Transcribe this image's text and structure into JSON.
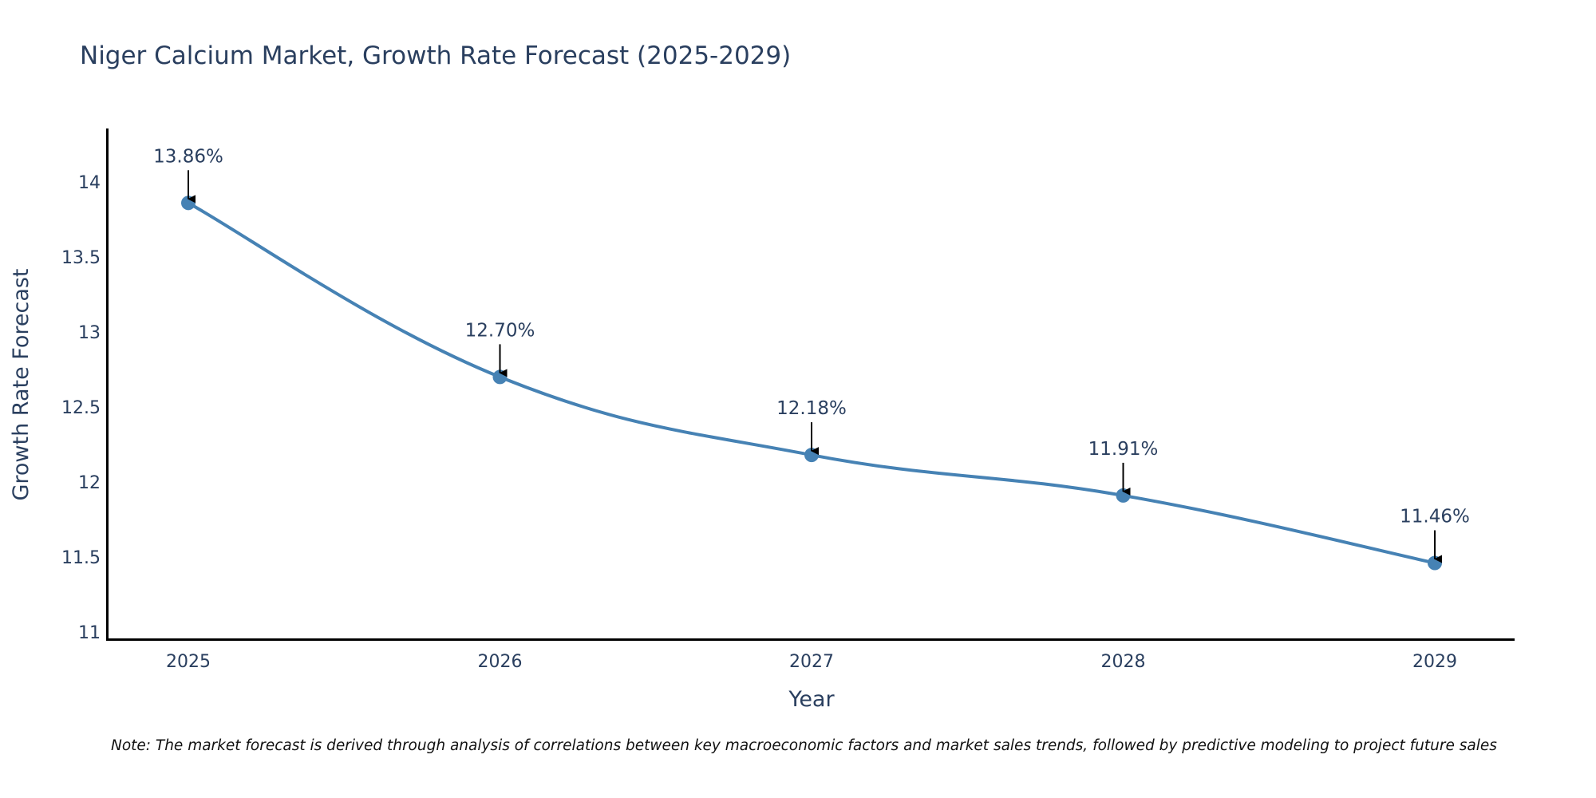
{
  "chart_data": {
    "type": "line",
    "title": "Niger Calcium Market, Growth Rate Forecast (2025-2029)",
    "xlabel": "Year",
    "ylabel": "Growth Rate Forecast",
    "categories": [
      "2025",
      "2026",
      "2027",
      "2028",
      "2029"
    ],
    "series": [
      {
        "name": "Growth Rate Forecast",
        "values": [
          13.86,
          12.7,
          12.18,
          11.91,
          11.46
        ],
        "labels": [
          "13.86%",
          "12.70%",
          "12.18%",
          "11.91%",
          "11.46%"
        ],
        "color": "#4682b4",
        "line_shape": "spline",
        "markers": true
      }
    ],
    "yticks": [
      11,
      11.5,
      12,
      12.5,
      13,
      13.5,
      14
    ],
    "ytick_labels": [
      "11",
      "11.5",
      "12",
      "12.5",
      "13",
      "13.5",
      "14"
    ],
    "ylim": [
      10.97,
      14.35
    ],
    "xlim": [
      -0.25,
      4.25
    ],
    "grid": false,
    "legend": "none",
    "annotations": [
      "13.86%",
      "12.70%",
      "12.18%",
      "11.91%",
      "11.46%"
    ],
    "note": "Note: The market forecast is derived through analysis of correlations between key macroeconomic factors and market sales trends, followed by predictive modeling to project future sales"
  }
}
